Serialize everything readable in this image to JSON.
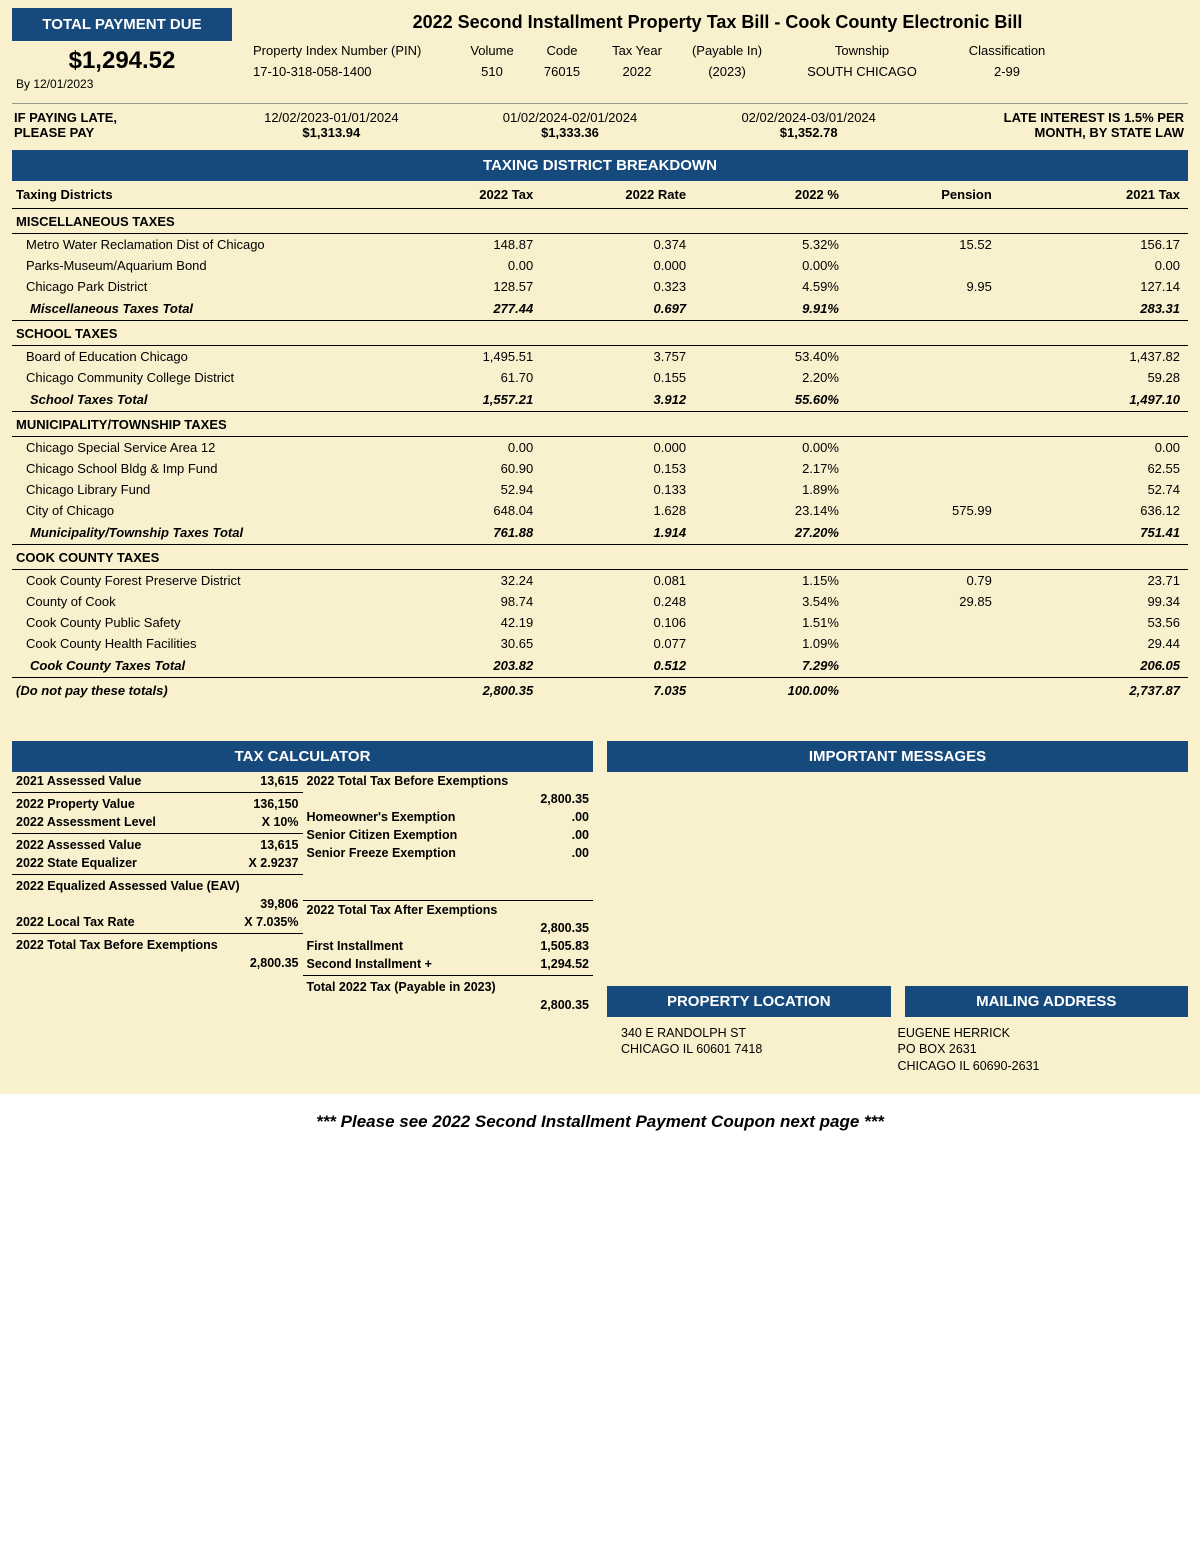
{
  "colors": {
    "header_bg": "#174a7c",
    "header_fg": "#ffffff",
    "page_bg": "#f9f0ce",
    "text": "#000000",
    "rule": "#000000"
  },
  "payment_due": {
    "title": "TOTAL PAYMENT DUE",
    "amount": "$1,294.52",
    "by_label": "By 12/01/2023"
  },
  "bill_title": "2022 Second Installment Property Tax Bill - Cook County Electronic Bill",
  "pin": {
    "pin_label": "Property Index Number (PIN)",
    "pin_value": "17-10-318-058-1400",
    "volume_label": "Volume",
    "volume_value": "510",
    "code_label": "Code",
    "code_value": "76015",
    "taxyear_label": "Tax Year",
    "taxyear_value": "2022",
    "payable_label": "(Payable In)",
    "payable_value": "(2023)",
    "township_label": "Township",
    "township_value": "SOUTH CHICAGO",
    "class_label": "Classification",
    "class_value": "2-99"
  },
  "late": {
    "label_line1": "IF PAYING LATE,",
    "label_line2": "PLEASE PAY",
    "blocks": [
      {
        "dates": "12/02/2023-01/01/2024",
        "amount": "$1,313.94"
      },
      {
        "dates": "01/02/2024-02/01/2024",
        "amount": "$1,333.36"
      },
      {
        "dates": "02/02/2024-03/01/2024",
        "amount": "$1,352.78"
      }
    ],
    "msg_line1": "LATE INTEREST IS 1.5% PER",
    "msg_line2": "MONTH, BY STATE LAW"
  },
  "breakdown": {
    "title": "TAXING DISTRICT BREAKDOWN",
    "headers": [
      "Taxing Districts",
      "2022 Tax",
      "2022 Rate",
      "2022 %",
      "Pension",
      "2021 Tax"
    ],
    "groups": [
      {
        "name": "MISCELLANEOUS TAXES",
        "rows": [
          [
            "Metro Water Reclamation Dist of Chicago",
            "148.87",
            "0.374",
            "5.32%",
            "15.52",
            "156.17"
          ],
          [
            "Parks-Museum/Aquarium Bond",
            "0.00",
            "0.000",
            "0.00%",
            "",
            "0.00"
          ],
          [
            "Chicago Park District",
            "128.57",
            "0.323",
            "4.59%",
            "9.95",
            "127.14"
          ]
        ],
        "subtotal": [
          "Miscellaneous Taxes Total",
          "277.44",
          "0.697",
          "9.91%",
          "",
          "283.31"
        ]
      },
      {
        "name": "SCHOOL TAXES",
        "rows": [
          [
            "Board of Education Chicago",
            "1,495.51",
            "3.757",
            "53.40%",
            "",
            "1,437.82"
          ],
          [
            "Chicago Community College District",
            "61.70",
            "0.155",
            "2.20%",
            "",
            "59.28"
          ]
        ],
        "subtotal": [
          "School Taxes Total",
          "1,557.21",
          "3.912",
          "55.60%",
          "",
          "1,497.10"
        ]
      },
      {
        "name": "MUNICIPALITY/TOWNSHIP TAXES",
        "rows": [
          [
            "Chicago Special Service Area 12",
            "0.00",
            "0.000",
            "0.00%",
            "",
            "0.00"
          ],
          [
            "Chicago School Bldg & Imp Fund",
            "60.90",
            "0.153",
            "2.17%",
            "",
            "62.55"
          ],
          [
            "Chicago Library Fund",
            "52.94",
            "0.133",
            "1.89%",
            "",
            "52.74"
          ],
          [
            "City of Chicago",
            "648.04",
            "1.628",
            "23.14%",
            "575.99",
            "636.12"
          ]
        ],
        "subtotal": [
          "Municipality/Township Taxes Total",
          "761.88",
          "1.914",
          "27.20%",
          "",
          "751.41"
        ]
      },
      {
        "name": "COOK COUNTY TAXES",
        "rows": [
          [
            "Cook County Forest Preserve District",
            "32.24",
            "0.081",
            "1.15%",
            "0.79",
            "23.71"
          ],
          [
            "County of Cook",
            "98.74",
            "0.248",
            "3.54%",
            "29.85",
            "99.34"
          ],
          [
            "Cook County Public Safety",
            "42.19",
            "0.106",
            "1.51%",
            "",
            "53.56"
          ],
          [
            "Cook County Health Facilities",
            "30.65",
            "0.077",
            "1.09%",
            "",
            "29.44"
          ]
        ],
        "subtotal": [
          "Cook County Taxes Total",
          "203.82",
          "0.512",
          "7.29%",
          "",
          "206.05"
        ]
      }
    ],
    "grand": [
      "(Do not pay these totals)",
      "2,800.35",
      "7.035",
      "100.00%",
      "",
      "2,737.87"
    ]
  },
  "calc": {
    "title": "TAX CALCULATOR",
    "left": [
      {
        "label": "2021 Assessed Value",
        "value": "13,615",
        "sep": true,
        "bold": true
      },
      {
        "label": "2022 Property Value",
        "value": "136,150",
        "sep": false,
        "bold": true
      },
      {
        "label": "2022 Assessment Level",
        "value": "X 10%",
        "sep": true,
        "bold": true
      },
      {
        "label": "2022 Assessed Value",
        "value": "13,615",
        "sep": false,
        "bold": true
      },
      {
        "label": "2022 State Equalizer",
        "value": "X  2.9237",
        "sep": true,
        "bold": true
      },
      {
        "label": "2022 Equalized Assessed Value (EAV)",
        "value": "",
        "sep": false,
        "bold": true
      },
      {
        "label": "",
        "value": "39,806",
        "sep": false,
        "bold": true
      },
      {
        "label": "2022 Local Tax Rate",
        "value": "X 7.035%",
        "sep": true,
        "bold": true
      },
      {
        "label": "2022 Total Tax Before Exemptions",
        "value": "",
        "sep": false,
        "bold": true
      },
      {
        "label": "",
        "value": "2,800.35",
        "sep": false,
        "bold": true
      }
    ],
    "right": [
      {
        "label": "2022 Total Tax Before Exemptions",
        "value": "",
        "sep": false,
        "bold": true
      },
      {
        "label": "",
        "value": "2,800.35",
        "sep": false,
        "bold": true
      },
      {
        "label": "Homeowner's Exemption",
        "value": ".00",
        "sep": false,
        "bold": true
      },
      {
        "label": "Senior Citizen Exemption",
        "value": ".00",
        "sep": false,
        "bold": true
      },
      {
        "label": "Senior Freeze Exemption",
        "value": ".00",
        "sep": false,
        "bold": true
      },
      {
        "label": "",
        "value": "",
        "sep": false,
        "bold": false,
        "spacer": true
      },
      {
        "label": "",
        "value": "",
        "sep": false,
        "bold": false,
        "spacer": true
      },
      {
        "label": "2022 Total Tax After Exemptions",
        "value": "",
        "sep": false,
        "bold": true,
        "topsep": true
      },
      {
        "label": "",
        "value": "2,800.35",
        "sep": false,
        "bold": true
      },
      {
        "label": "First Installment",
        "value": "1,505.83",
        "sep": false,
        "bold": true
      },
      {
        "label": "Second Installment  +",
        "value": "1,294.52",
        "sep": true,
        "bold": true
      },
      {
        "label": "Total 2022 Tax (Payable in 2023)",
        "value": "",
        "sep": false,
        "bold": true
      },
      {
        "label": "",
        "value": "2,800.35",
        "sep": false,
        "bold": true
      }
    ]
  },
  "messages": {
    "title": "IMPORTANT MESSAGES"
  },
  "location": {
    "prop_title": "PROPERTY LOCATION",
    "prop_lines": [
      "340 E RANDOLPH ST",
      "CHICAGO IL 60601 7418"
    ],
    "mail_title": "MAILING ADDRESS",
    "mail_lines": [
      "EUGENE HERRICK",
      "PO BOX 2631",
      "CHICAGO IL 60690-2631"
    ]
  },
  "footer": "*** Please see 2022 Second Installment Payment Coupon next page ***"
}
